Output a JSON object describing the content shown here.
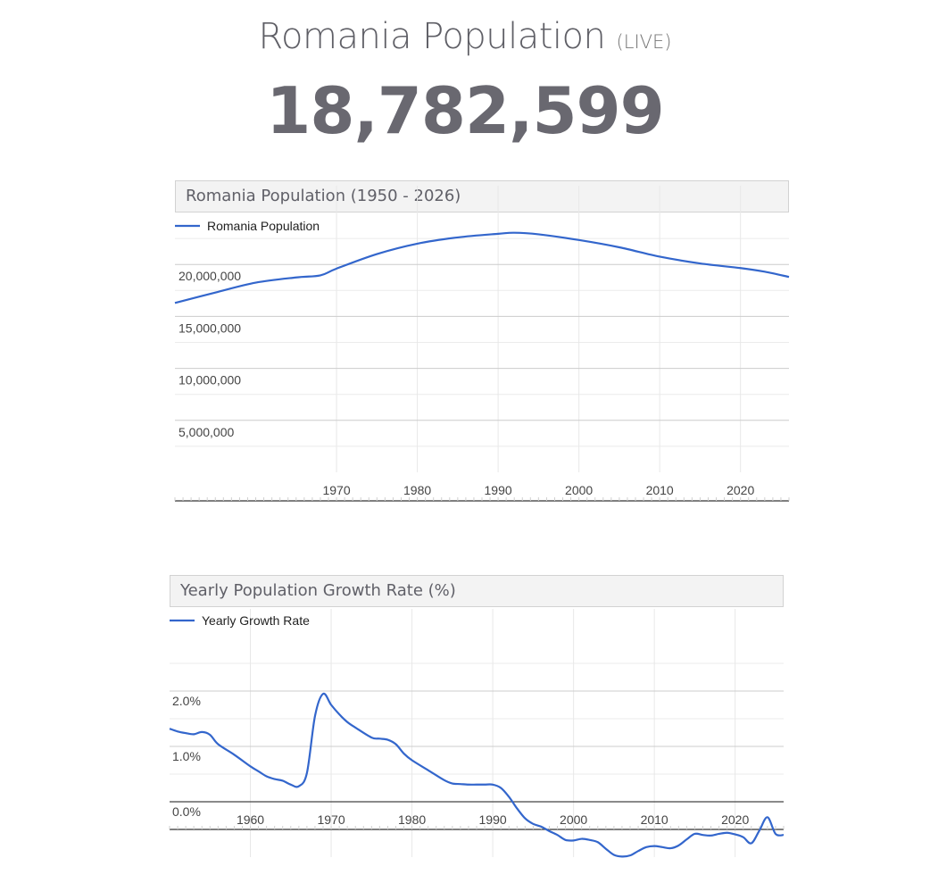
{
  "header": {
    "title": "Romania Population",
    "live_tag": "(LIVE)",
    "population_counter": "18,782,599"
  },
  "colors": {
    "series": "#3366cc",
    "header_bg": "#f3f3f3",
    "title_text": "#5f5f66",
    "counter_text": "#696870"
  },
  "chart_data": [
    {
      "type": "line",
      "title": "Romania Population (1950 - 2026)",
      "xlabel": "",
      "ylabel": "",
      "xlim": [
        1950,
        2026
      ],
      "ylim": [
        0,
        25000000
      ],
      "x_ticks": [
        1970,
        1980,
        1990,
        2000,
        2010,
        2020
      ],
      "y_ticks": [
        {
          "value": 5000000,
          "label": "5,000,000"
        },
        {
          "value": 10000000,
          "label": "10,000,000"
        },
        {
          "value": 15000000,
          "label": "15,000,000"
        },
        {
          "value": 20000000,
          "label": "20,000,000"
        }
      ],
      "grid": true,
      "legend_position": "top-left",
      "series": [
        {
          "name": "Romania Population",
          "x": [
            1950,
            1955,
            1960,
            1965,
            1968,
            1970,
            1975,
            1980,
            1985,
            1990,
            1992,
            1995,
            2000,
            2005,
            2010,
            2015,
            2020,
            2023,
            2026
          ],
          "y": [
            16300000,
            17300000,
            18250000,
            18750000,
            18950000,
            19600000,
            21000000,
            22000000,
            22600000,
            22950000,
            23050000,
            22900000,
            22350000,
            21650000,
            20750000,
            20100000,
            19650000,
            19300000,
            18800000
          ]
        }
      ]
    },
    {
      "type": "line",
      "title": "Yearly Population Growth Rate (%)",
      "xlabel": "",
      "ylabel": "",
      "xlim": [
        1950,
        2026
      ],
      "ylim": [
        -1.0,
        3.0
      ],
      "x_ticks": [
        1960,
        1970,
        1980,
        1990,
        2000,
        2010,
        2020
      ],
      "y_ticks": [
        {
          "value": 0.0,
          "label": "0.0%"
        },
        {
          "value": 1.0,
          "label": "1.0%"
        },
        {
          "value": 2.0,
          "label": "2.0%"
        }
      ],
      "grid": true,
      "legend_position": "top-left",
      "series": [
        {
          "name": "Yearly Growth Rate",
          "x": [
            1950,
            1951,
            1952,
            1953,
            1954,
            1955,
            1956,
            1958,
            1960,
            1961,
            1962,
            1963,
            1964,
            1965,
            1966,
            1967,
            1968,
            1969,
            1970,
            1971,
            1972,
            1973,
            1975,
            1976,
            1977,
            1978,
            1979,
            1980,
            1982,
            1984,
            1985,
            1986,
            1987,
            1988,
            1989,
            1990,
            1991,
            1992,
            1993,
            1994,
            1995,
            1996,
            1997,
            1998,
            1999,
            2000,
            2001,
            2002,
            2003,
            2004,
            2005,
            2006,
            2007,
            2008,
            2009,
            2010,
            2011,
            2012,
            2013,
            2014,
            2015,
            2016,
            2017,
            2018,
            2019,
            2020,
            2021,
            2022,
            2023,
            2024,
            2025,
            2026
          ],
          "y": [
            1.32,
            1.27,
            1.24,
            1.22,
            1.26,
            1.21,
            1.04,
            0.85,
            0.64,
            0.55,
            0.46,
            0.41,
            0.38,
            0.31,
            0.28,
            0.52,
            1.55,
            1.95,
            1.75,
            1.58,
            1.44,
            1.34,
            1.16,
            1.14,
            1.12,
            1.04,
            0.87,
            0.75,
            0.57,
            0.39,
            0.33,
            0.32,
            0.31,
            0.31,
            0.31,
            0.31,
            0.25,
            0.09,
            -0.12,
            -0.3,
            -0.4,
            -0.45,
            -0.53,
            -0.6,
            -0.69,
            -0.7,
            -0.67,
            -0.69,
            -0.73,
            -0.85,
            -0.96,
            -0.99,
            -0.97,
            -0.89,
            -0.82,
            -0.8,
            -0.82,
            -0.84,
            -0.79,
            -0.68,
            -0.58,
            -0.6,
            -0.61,
            -0.58,
            -0.56,
            -0.59,
            -0.64,
            -0.75,
            -0.52,
            -0.28,
            -0.58,
            -0.6
          ]
        }
      ]
    }
  ]
}
